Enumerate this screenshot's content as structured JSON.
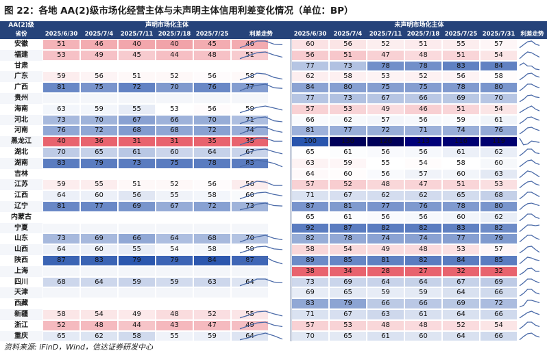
{
  "title": "图 22：各地 AA(2)级市场化经营主体与未声明主体信用利差变化情况（单位：BP）",
  "source": "资料来源: iFinD，Wind，信达证券研发中心",
  "header": {
    "corner": "AA(2)级",
    "province_label": "省份",
    "group_a": "声明市场化主体",
    "group_b": "未声明市场化主体",
    "trend_label": "利差走势",
    "dates": [
      "2025/6/30",
      "2025/7/4",
      "2025/7/11",
      "2025/7/18",
      "2025/7/25",
      "2025/7/31"
    ]
  },
  "colors": {
    "header": "#26437a",
    "high": "#e8636e",
    "low": "#5a7cc0"
  },
  "rows": [
    {
      "province": "安徽",
      "a": [
        51,
        46,
        40,
        40,
        45,
        46
      ],
      "b": [
        60,
        56,
        52,
        51,
        55,
        57
      ]
    },
    {
      "province": "福建",
      "a": [
        53,
        49,
        45,
        44,
        48,
        51
      ],
      "b": [
        56,
        51,
        47,
        48,
        51,
        54
      ]
    },
    {
      "province": "甘肃",
      "a": [],
      "b": [
        77,
        73,
        78,
        78,
        83,
        84
      ]
    },
    {
      "province": "广东",
      "a": [
        59,
        56,
        51,
        52,
        56,
        58
      ],
      "b": [
        62,
        58,
        53,
        52,
        56,
        58
      ]
    },
    {
      "province": "广西",
      "a": [
        81,
        75,
        72,
        70,
        76,
        77
      ],
      "b": [
        84,
        80,
        75,
        75,
        78,
        80
      ]
    },
    {
      "province": "贵州",
      "a": [],
      "b": [
        77,
        73,
        67,
        66,
        69,
        70
      ]
    },
    {
      "province": "海南",
      "a": [
        63,
        59,
        55,
        53,
        56,
        59
      ],
      "b": [
        57,
        53,
        49,
        46,
        51,
        54
      ]
    },
    {
      "province": "河北",
      "a": [
        73,
        70,
        67,
        66,
        70,
        71
      ],
      "b": [
        66,
        62,
        57,
        56,
        59,
        61
      ]
    },
    {
      "province": "河南",
      "a": [
        76,
        72,
        68,
        68,
        72,
        74
      ],
      "b": [
        81,
        77,
        72,
        71,
        74,
        76
      ]
    },
    {
      "province": "黑龙江",
      "a": [
        40,
        36,
        31,
        31,
        35,
        35
      ],
      "b": [
        100,
        130,
        126,
        113,
        116,
        119
      ]
    },
    {
      "province": "湖北",
      "a": [
        70,
        65,
        61,
        60,
        64,
        67
      ],
      "b": [
        65,
        61,
        56,
        56,
        61,
        62
      ]
    },
    {
      "province": "湖南",
      "a": [
        83,
        79,
        73,
        75,
        78,
        83
      ],
      "b": [
        63,
        59,
        55,
        54,
        58,
        60
      ]
    },
    {
      "province": "吉林",
      "a": [],
      "b": [
        64,
        60,
        56,
        57,
        60,
        63
      ]
    },
    {
      "province": "江苏",
      "a": [
        59,
        55,
        51,
        52,
        56,
        56
      ],
      "b": [
        57,
        52,
        48,
        47,
        51,
        53
      ]
    },
    {
      "province": "江西",
      "a": [
        64,
        60,
        56,
        55,
        58,
        60
      ],
      "b": [
        71,
        67,
        62,
        62,
        65,
        68
      ]
    },
    {
      "province": "辽宁",
      "a": [
        81,
        77,
        69,
        67,
        72,
        73
      ],
      "b": [
        87,
        81,
        77,
        76,
        78,
        80
      ]
    },
    {
      "province": "内蒙古",
      "a": [],
      "b": [
        65,
        61,
        56,
        56,
        60,
        62
      ]
    },
    {
      "province": "宁夏",
      "a": [],
      "b": [
        92,
        87,
        82,
        82,
        83,
        82
      ]
    },
    {
      "province": "山东",
      "a": [
        73,
        69,
        66,
        64,
        68,
        70
      ],
      "b": [
        82,
        78,
        74,
        74,
        77,
        79
      ]
    },
    {
      "province": "山西",
      "a": [
        64,
        60,
        55,
        54,
        58,
        59
      ],
      "b": [
        58,
        54,
        49,
        48,
        53,
        57
      ]
    },
    {
      "province": "陕西",
      "a": [
        87,
        83,
        79,
        79,
        84,
        87
      ],
      "b": [
        89,
        85,
        81,
        82,
        84,
        85
      ]
    },
    {
      "province": "上海",
      "a": [],
      "b": [
        38,
        34,
        28,
        27,
        32,
        32
      ]
    },
    {
      "province": "四川",
      "a": [
        68,
        64,
        59,
        59,
        63,
        64
      ],
      "b": [
        73,
        69,
        64,
        64,
        67,
        69
      ]
    },
    {
      "province": "天津",
      "a": [],
      "b": [
        69,
        65,
        59,
        59,
        64,
        66
      ]
    },
    {
      "province": "西藏",
      "a": [],
      "b": [
        83,
        79,
        66,
        66,
        69,
        72
      ]
    },
    {
      "province": "新疆",
      "a": [
        58,
        54,
        49,
        48,
        52,
        55
      ],
      "b": [
        71,
        67,
        63,
        61,
        64,
        66
      ]
    },
    {
      "province": "浙江",
      "a": [
        52,
        48,
        44,
        43,
        47,
        49
      ],
      "b": [
        57,
        53,
        48,
        48,
        52,
        54
      ]
    },
    {
      "province": "重庆",
      "a": [
        65,
        62,
        58,
        55,
        59,
        64
      ],
      "b": [
        70,
        65,
        61,
        60,
        64,
        66
      ]
    }
  ]
}
